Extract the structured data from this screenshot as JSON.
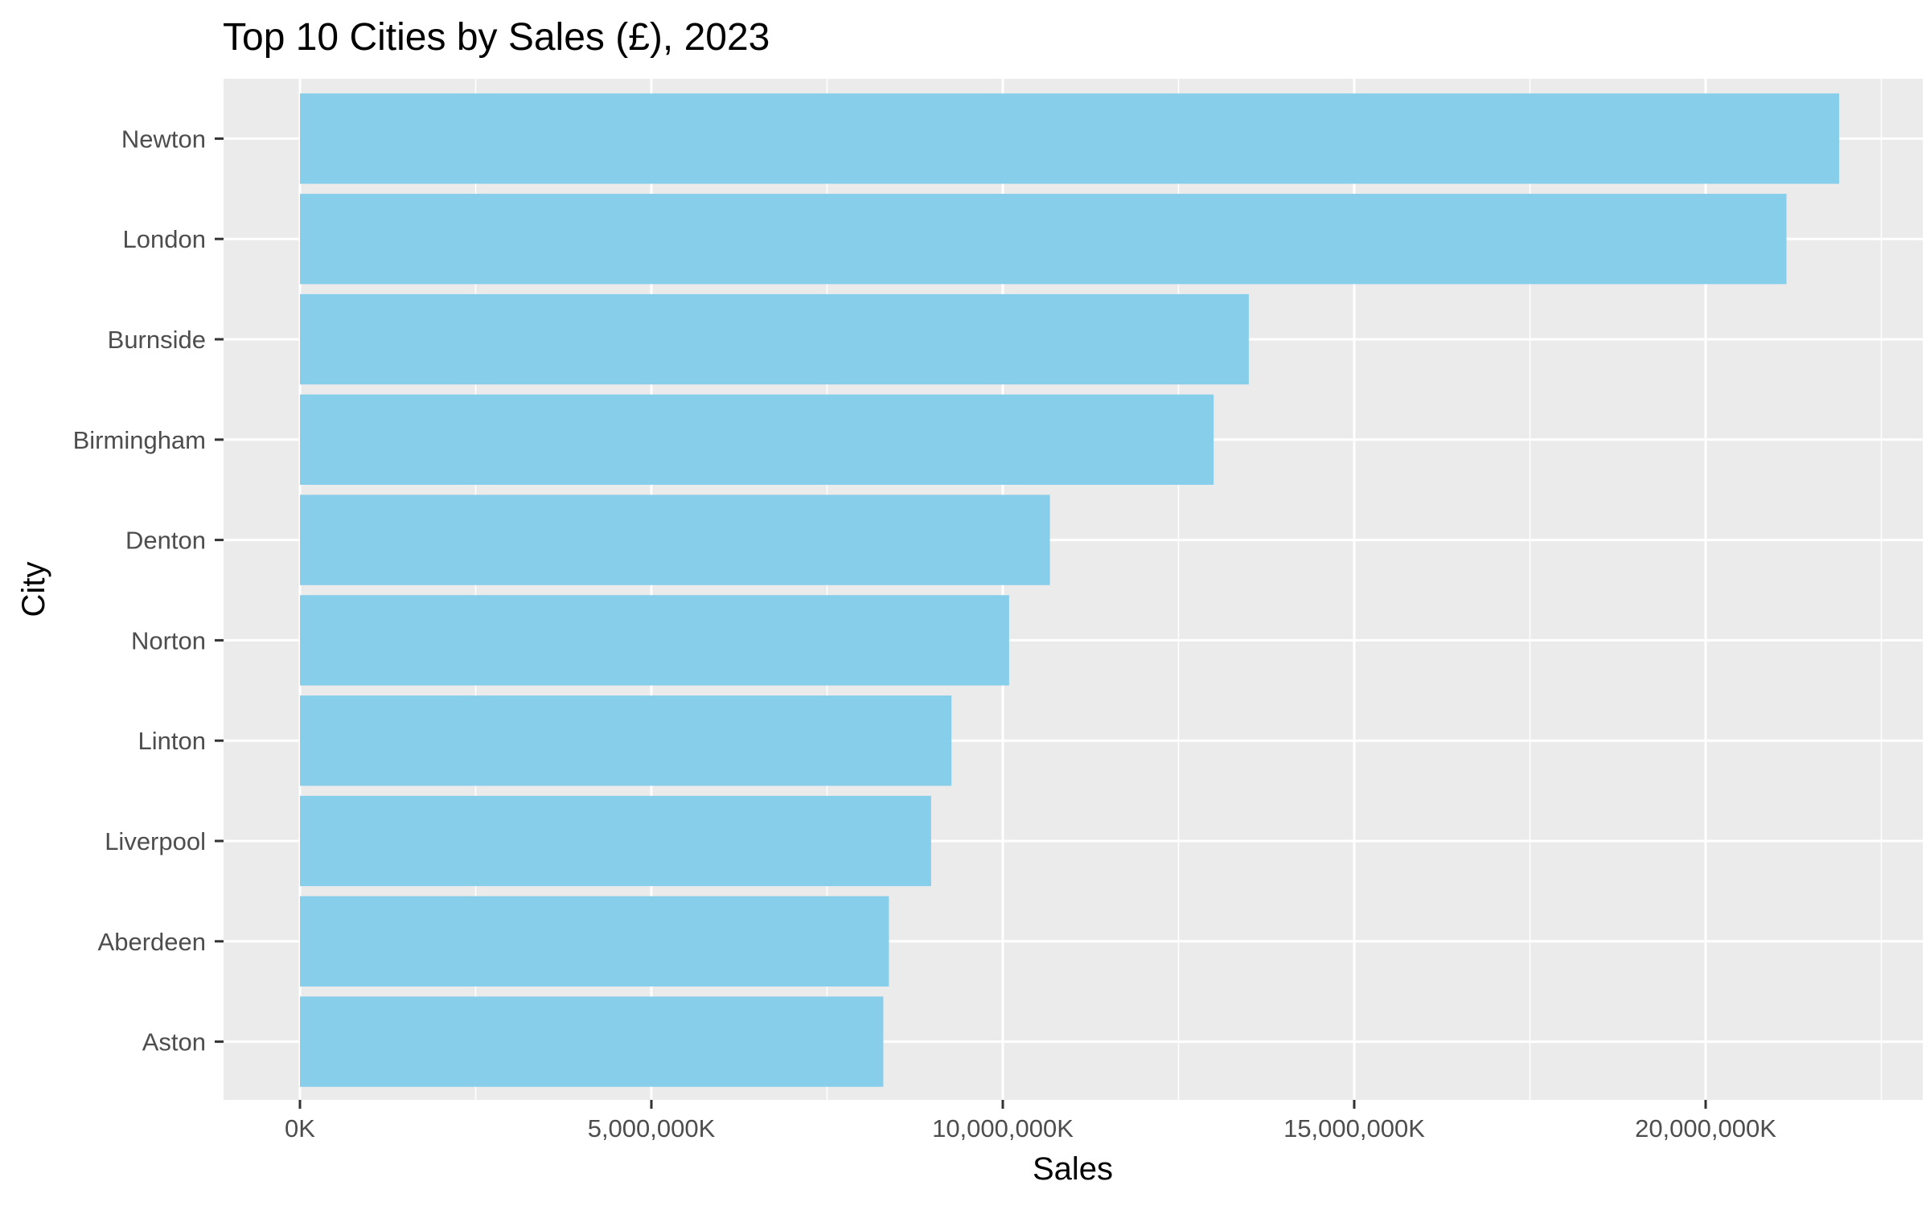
{
  "chart_data": {
    "type": "bar",
    "orientation": "horizontal",
    "title": "Top 10 Cities by Sales (£), 2023",
    "xlabel": "Sales",
    "ylabel": "City",
    "categories": [
      "Newton",
      "London",
      "Burnside",
      "Birmingham",
      "Denton",
      "Norton",
      "Linton",
      "Liverpool",
      "Aberdeen",
      "Aston"
    ],
    "values": [
      21900000,
      21150000,
      13500000,
      13000000,
      10670000,
      10090000,
      9270000,
      8980000,
      8380000,
      8300000
    ],
    "value_unit": "K",
    "xlim": [
      -1100000,
      22500000
    ],
    "xticks": [
      0,
      5000000,
      10000000,
      15000000,
      20000000
    ],
    "xtick_labels": [
      "0K",
      "5,000,000K",
      "10,000,000K",
      "15,000,000K",
      "20,000,000K"
    ],
    "grid": true,
    "legend": "none",
    "colors": {
      "bar": "#87CEEB",
      "panel": "#EBEBEB",
      "grid": "#FFFFFF",
      "tick_text": "#4D4D4D",
      "tick_mark": "#333333"
    }
  }
}
